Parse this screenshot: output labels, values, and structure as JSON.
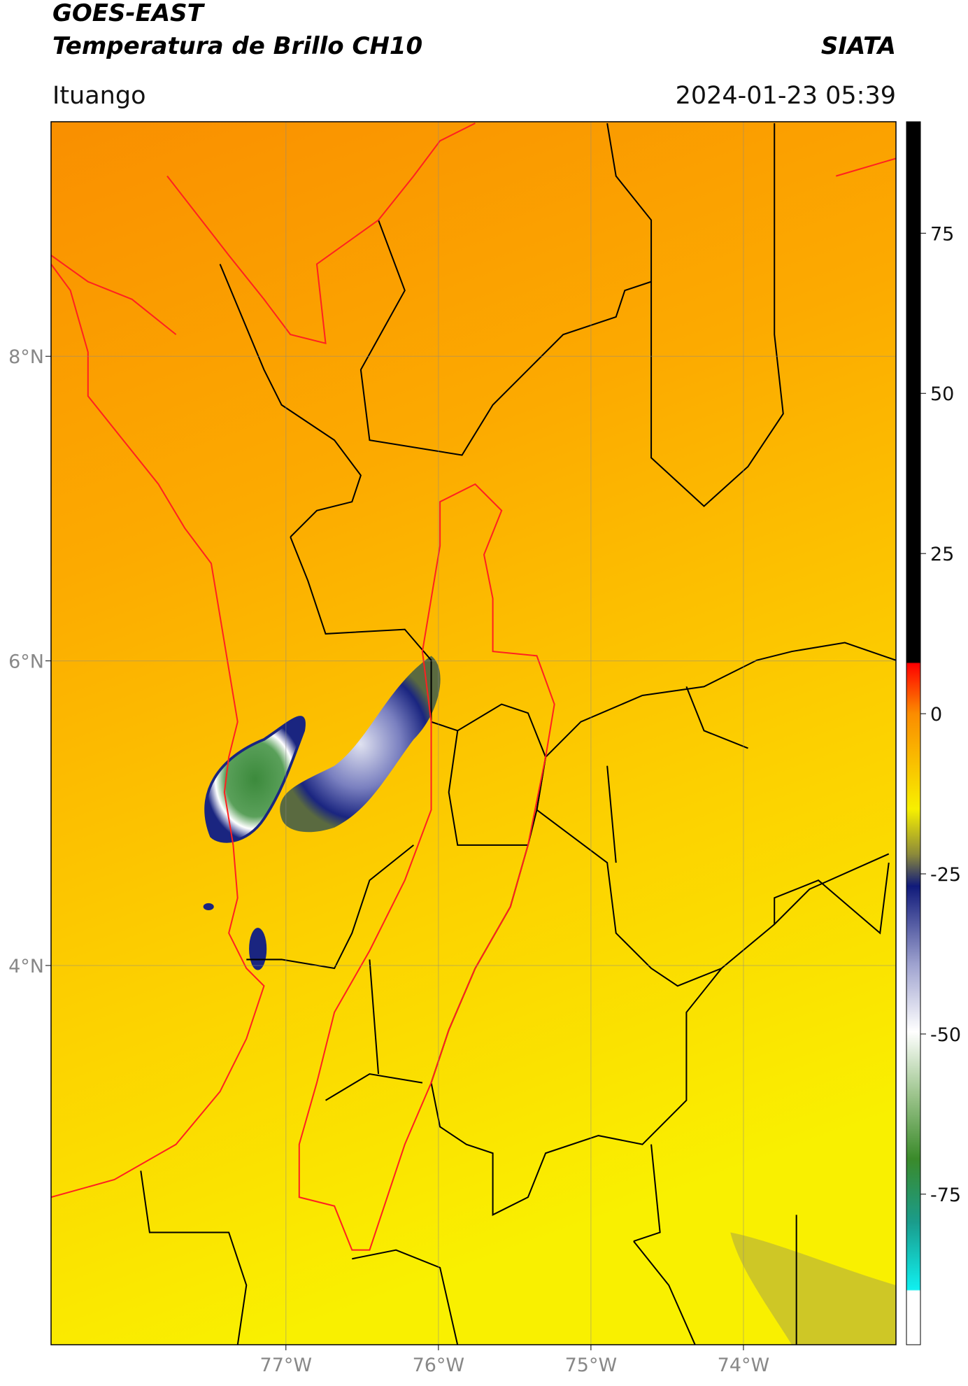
{
  "header": {
    "title": "GOES-EAST",
    "subtitle": "Temperatura de Brillo CH10",
    "source": "SIATA",
    "location": "Ituango",
    "datetime": "2024-01-23 05:39"
  },
  "map": {
    "lon_range": [
      -78.54,
      -73.0
    ],
    "lat_range": [
      1.51,
      9.54
    ],
    "lon_ticks": [
      {
        "value": -77,
        "label": "77°W"
      },
      {
        "value": -76,
        "label": "76°W"
      },
      {
        "value": -75,
        "label": "75°W"
      },
      {
        "value": -74,
        "label": "74°W"
      }
    ],
    "lat_ticks": [
      {
        "value": 8,
        "label": "8°N"
      },
      {
        "value": 6,
        "label": "6°N"
      },
      {
        "value": 4,
        "label": "4°N"
      }
    ]
  },
  "colorbar": {
    "range": [
      -98.5,
      92.4
    ],
    "ticks": [
      75,
      50,
      25,
      0,
      -25,
      -50,
      -75
    ]
  }
}
